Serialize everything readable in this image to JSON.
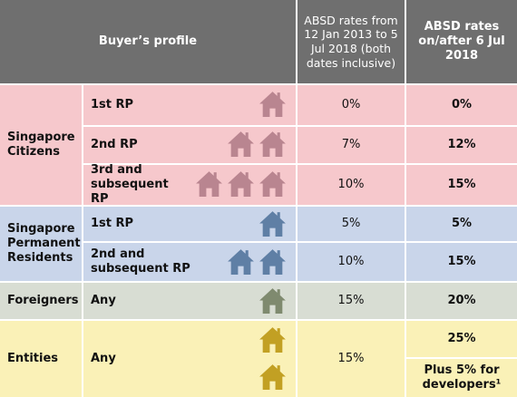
{
  "header": {
    "buyer_profile": "Buyer’s profile",
    "rates_2013": "ABSD rates from 12 Jan 2013 to 5 Jul 2018 (both dates inclusive)",
    "rates_2018": "ABSD rates on/after 6 Jul 2018"
  },
  "colors": {
    "header": "#6f6f6f",
    "citizens_bg": "#f6c8cc",
    "pr_bg": "#c9d5ea",
    "foreigners_bg": "#d8ddd3",
    "entities_bg": "#faf1b7",
    "citizens_icon": "#b98590",
    "pr_icon": "#5f7fa5",
    "foreigners_icon": "#7f8a6f",
    "entities_icon": "#c2a023"
  },
  "groups": [
    {
      "name": "Singapore Citizens",
      "rows": [
        {
          "profile": "1st RP",
          "houses": 1,
          "rate_2013": "0%",
          "rate_2018": "0%"
        },
        {
          "profile": "2nd RP",
          "houses": 2,
          "rate_2013": "7%",
          "rate_2018": "12%"
        },
        {
          "profile": "3rd and subsequent RP",
          "houses": 3,
          "rate_2013": "10%",
          "rate_2018": "15%"
        }
      ]
    },
    {
      "name": "Singapore Permanent Residents",
      "rows": [
        {
          "profile": "1st RP",
          "houses": 1,
          "rate_2013": "5%",
          "rate_2018": "5%"
        },
        {
          "profile": "2nd and subsequent RP",
          "houses": 2,
          "rate_2013": "10%",
          "rate_2018": "15%"
        }
      ]
    },
    {
      "name": "Foreigners",
      "rows": [
        {
          "profile": "Any",
          "houses": 1,
          "rate_2013": "15%",
          "rate_2018": "20%"
        }
      ]
    },
    {
      "name": "Entities",
      "rows": [
        {
          "profile": "Any",
          "houses": 2,
          "rate_2013": "15%",
          "rate_2018": "25%",
          "rate_2018_extra": "Plus 5% for developers¹"
        }
      ]
    }
  ]
}
